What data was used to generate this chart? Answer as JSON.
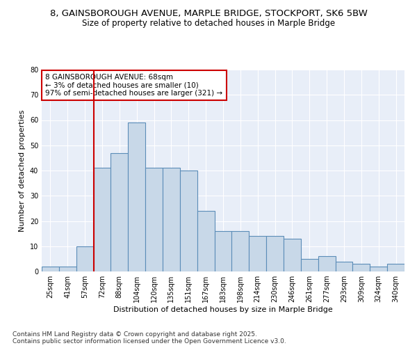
{
  "title_line1": "8, GAINSBOROUGH AVENUE, MARPLE BRIDGE, STOCKPORT, SK6 5BW",
  "title_line2": "Size of property relative to detached houses in Marple Bridge",
  "xlabel": "Distribution of detached houses by size in Marple Bridge",
  "ylabel": "Number of detached properties",
  "categories": [
    "25sqm",
    "41sqm",
    "57sqm",
    "72sqm",
    "88sqm",
    "104sqm",
    "120sqm",
    "135sqm",
    "151sqm",
    "167sqm",
    "183sqm",
    "198sqm",
    "214sqm",
    "230sqm",
    "246sqm",
    "261sqm",
    "277sqm",
    "293sqm",
    "309sqm",
    "324sqm",
    "340sqm"
  ],
  "values": [
    2,
    2,
    10,
    41,
    47,
    59,
    41,
    41,
    40,
    24,
    16,
    16,
    14,
    14,
    13,
    5,
    6,
    4,
    3,
    2,
    3
  ],
  "bar_color": "#c8d8e8",
  "bar_edge_color": "#5b8db8",
  "vline_x_index": 2.5,
  "vline_color": "#cc0000",
  "annotation_text": "8 GAINSBOROUGH AVENUE: 68sqm\n← 3% of detached houses are smaller (10)\n97% of semi-detached houses are larger (321) →",
  "annotation_box_color": "#ffffff",
  "annotation_box_edge": "#cc0000",
  "ylim": [
    0,
    80
  ],
  "yticks": [
    0,
    10,
    20,
    30,
    40,
    50,
    60,
    70,
    80
  ],
  "background_color": "#e8eef8",
  "footer_line1": "Contains HM Land Registry data © Crown copyright and database right 2025.",
  "footer_line2": "Contains public sector information licensed under the Open Government Licence v3.0.",
  "title_fontsize": 9.5,
  "subtitle_fontsize": 8.5,
  "axis_label_fontsize": 8,
  "tick_fontsize": 7,
  "annotation_fontsize": 7.5,
  "footer_fontsize": 6.5
}
